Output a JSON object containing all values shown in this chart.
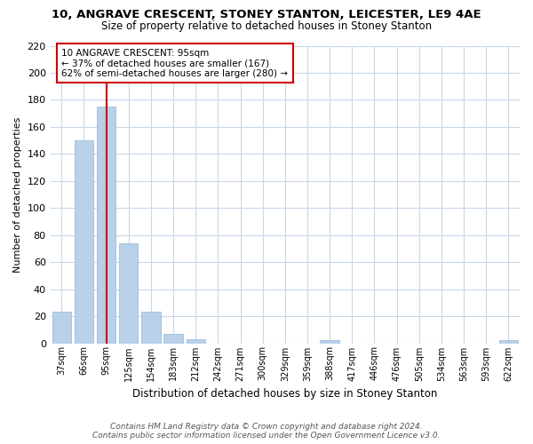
{
  "title": "10, ANGRAVE CRESCENT, STONEY STANTON, LEICESTER, LE9 4AE",
  "subtitle": "Size of property relative to detached houses in Stoney Stanton",
  "xlabel": "Distribution of detached houses by size in Stoney Stanton",
  "ylabel": "Number of detached properties",
  "categories": [
    "37sqm",
    "66sqm",
    "95sqm",
    "125sqm",
    "154sqm",
    "183sqm",
    "212sqm",
    "242sqm",
    "271sqm",
    "300sqm",
    "329sqm",
    "359sqm",
    "388sqm",
    "417sqm",
    "446sqm",
    "476sqm",
    "505sqm",
    "534sqm",
    "563sqm",
    "593sqm",
    "622sqm"
  ],
  "values": [
    23,
    150,
    175,
    74,
    23,
    7,
    3,
    0,
    0,
    0,
    0,
    0,
    2,
    0,
    0,
    0,
    0,
    0,
    0,
    0,
    2
  ],
  "bar_color": "#b8d0e8",
  "highlight_bar_index": 2,
  "highlight_line_color": "#cc0000",
  "annotation_line1": "10 ANGRAVE CRESCENT: 95sqm",
  "annotation_line2": "← 37% of detached houses are smaller (167)",
  "annotation_line3": "62% of semi-detached houses are larger (280) →",
  "annotation_box_color": "#ffffff",
  "annotation_box_edge": "#cc0000",
  "ylim": [
    0,
    220
  ],
  "yticks": [
    0,
    20,
    40,
    60,
    80,
    100,
    120,
    140,
    160,
    180,
    200,
    220
  ],
  "background_color": "#ffffff",
  "grid_color": "#c8d8e8",
  "footer_line1": "Contains HM Land Registry data © Crown copyright and database right 2024.",
  "footer_line2": "Contains public sector information licensed under the Open Government Licence v3.0."
}
